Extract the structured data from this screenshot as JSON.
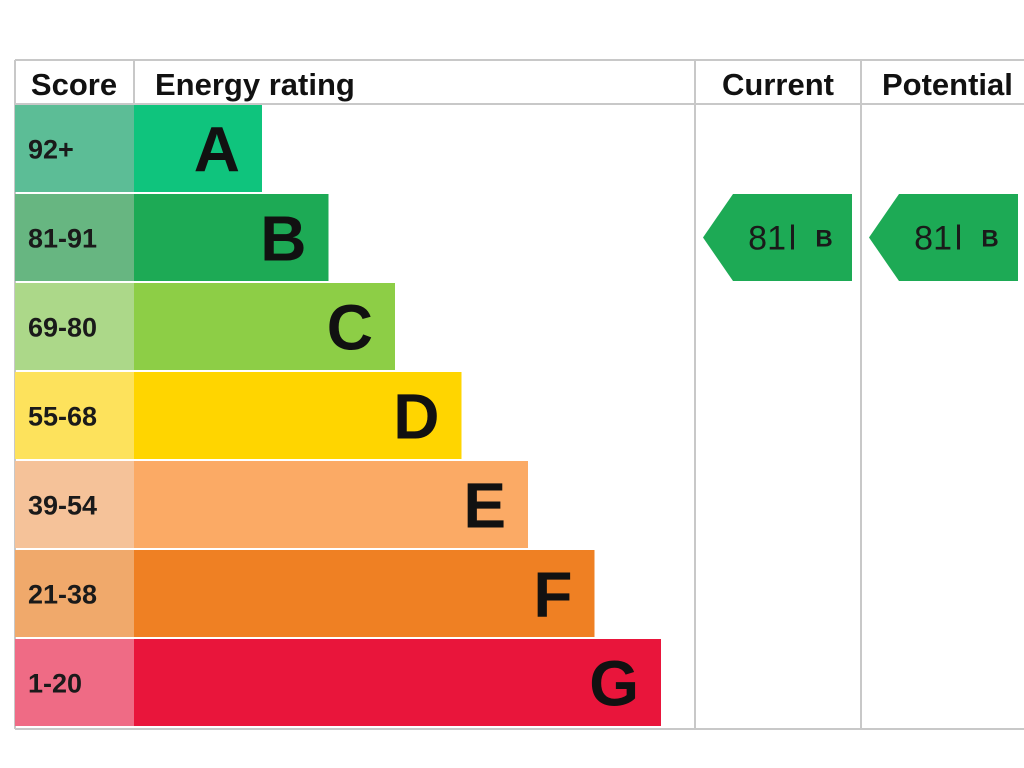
{
  "headers": {
    "score": "Score",
    "energy_rating": "Energy rating",
    "current": "Current",
    "potential": "Potential"
  },
  "chart_data": {
    "type": "bar",
    "categories": [
      "A",
      "B",
      "C",
      "D",
      "E",
      "F",
      "G"
    ],
    "score_ranges": [
      "92+",
      "81-91",
      "69-80",
      "55-68",
      "39-54",
      "21-38",
      "1-20"
    ],
    "values": [
      1,
      2,
      3,
      4,
      5,
      6,
      7
    ],
    "colors": [
      "#0fc47d",
      "#1daa55",
      "#8dce46",
      "#ffd500",
      "#fbaa65",
      "#ef8023",
      "#e9153b"
    ],
    "score_colors": [
      "#5cbd96",
      "#67b681",
      "#acd889",
      "#fde25c",
      "#f5c299",
      "#f0a96b",
      "#ef6b85"
    ],
    "current": {
      "score": "81",
      "band": "B",
      "color": "#1daa55"
    },
    "potential": {
      "score": "81",
      "band": "B",
      "color": "#1daa55"
    }
  }
}
